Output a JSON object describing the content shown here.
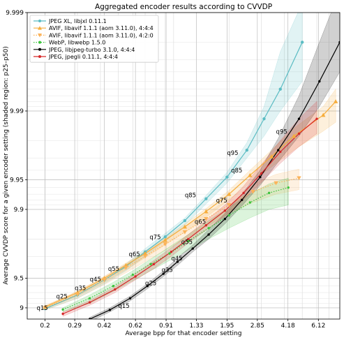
{
  "chart_data": {
    "type": "line",
    "title": "Aggregated encoder results according to CVVDP",
    "xlabel": "Average bpp for that encoder setting",
    "ylabel": "Average CVVDP score for a given encoder setting (shaded region: p25–p50)",
    "x_scale": "log",
    "y_scale": "log-distance-to-10",
    "xlim": [
      0.16,
      8.0
    ],
    "ylim": [
      8.7,
      9.999
    ],
    "x_ticks": [
      "0.2",
      "0.29",
      "0.42",
      "0.62",
      "0.91",
      "1.33",
      "1.95",
      "2.85",
      "4.18",
      "6.12"
    ],
    "y_ticks": [
      "9",
      "9.5",
      "9.9",
      "9.95",
      "9.99",
      "9.999"
    ],
    "grid": true,
    "legend_position": "upper-left",
    "series": [
      {
        "name": "JPEG XL, libjxl 0.11.1",
        "color": "#5bbcc3",
        "marker": "circle",
        "linestyle": "solid",
        "points": [
          [
            0.2,
            8.98
          ],
          [
            0.3,
            9.26
          ],
          [
            0.42,
            9.48
          ],
          [
            0.55,
            9.62
          ],
          [
            0.7,
            9.73
          ],
          [
            0.9,
            9.81
          ],
          [
            1.15,
            9.87
          ],
          [
            1.5,
            9.922
          ],
          [
            1.95,
            9.953
          ],
          [
            2.5,
            9.975
          ],
          [
            3.1,
            9.988
          ],
          [
            3.8,
            9.994
          ],
          [
            5.0,
            9.998
          ]
        ],
        "band_low": [
          8.95,
          9.2,
          9.43,
          9.58,
          9.7,
          9.79,
          9.855,
          9.912,
          9.946,
          9.97,
          9.982,
          9.99,
          9.995
        ],
        "band_high": [
          8.99,
          9.28,
          9.5,
          9.64,
          9.75,
          9.825,
          9.878,
          9.928,
          9.958,
          9.979,
          9.991,
          9.9975,
          9.9992
        ]
      },
      {
        "name": "AVIF, libavif 1.1.1 (aom 3.11.0), 4:4:4",
        "color": "#f6ad3c",
        "marker": "triangle-up",
        "linestyle": "solid",
        "points": [
          [
            0.2,
            9.02
          ],
          [
            0.3,
            9.3
          ],
          [
            0.42,
            9.5
          ],
          [
            0.55,
            9.63
          ],
          [
            0.7,
            9.72
          ],
          [
            0.9,
            9.795
          ],
          [
            1.15,
            9.85
          ],
          [
            1.5,
            9.895
          ],
          [
            2.0,
            9.93
          ],
          [
            2.6,
            9.955
          ],
          [
            3.4,
            9.971
          ],
          [
            4.5,
            9.982
          ],
          [
            6.5,
            9.989
          ],
          [
            7.6,
            9.992
          ]
        ],
        "band_low": [
          8.98,
          9.24,
          9.45,
          9.59,
          9.69,
          9.77,
          9.83,
          9.88,
          9.92,
          9.946,
          9.963,
          9.975,
          9.984,
          9.987
        ],
        "band_high": [
          9.04,
          9.32,
          9.52,
          9.65,
          9.735,
          9.805,
          9.86,
          9.902,
          9.936,
          9.96,
          9.975,
          9.985,
          9.991,
          9.994
        ]
      },
      {
        "name": "AVIF, libavif 1.1.1 (aom 3.11.0), 4:2:0",
        "color": "#fbb35a",
        "marker": "triangle-down",
        "linestyle": "dotted",
        "points": [
          [
            0.2,
            9.0
          ],
          [
            0.3,
            9.27
          ],
          [
            0.42,
            9.48
          ],
          [
            0.55,
            9.61
          ],
          [
            0.7,
            9.7
          ],
          [
            0.9,
            9.775
          ],
          [
            1.15,
            9.83
          ],
          [
            1.5,
            9.875
          ],
          [
            2.0,
            9.91
          ],
          [
            2.7,
            9.934
          ],
          [
            3.6,
            9.946
          ],
          [
            4.8,
            9.952
          ]
        ],
        "band_low": [
          8.95,
          9.2,
          9.42,
          9.56,
          9.66,
          9.74,
          9.8,
          9.85,
          9.89,
          9.915,
          9.93,
          9.937
        ],
        "band_high": [
          9.05,
          9.32,
          9.52,
          9.64,
          9.73,
          9.8,
          9.85,
          9.89,
          9.922,
          9.945,
          9.956,
          9.961
        ]
      },
      {
        "name": "WebP, libwebp 1.5.0",
        "color": "#3cc43c",
        "marker": "dot",
        "linestyle": "dotted",
        "points": [
          [
            0.25,
            8.96
          ],
          [
            0.35,
            9.2
          ],
          [
            0.47,
            9.4
          ],
          [
            0.6,
            9.54
          ],
          [
            0.75,
            9.64
          ],
          [
            0.95,
            9.72
          ],
          [
            1.2,
            9.79
          ],
          [
            1.55,
            9.845
          ],
          [
            2.0,
            9.885
          ],
          [
            2.6,
            9.915
          ],
          [
            3.3,
            9.932
          ],
          [
            4.2,
            9.94
          ]
        ],
        "band_low": [
          8.9,
          9.1,
          9.32,
          9.47,
          9.58,
          9.67,
          9.74,
          9.8,
          9.845,
          9.878,
          9.9,
          9.91
        ],
        "band_high": [
          9.0,
          9.26,
          9.45,
          9.58,
          9.68,
          9.76,
          9.82,
          9.87,
          9.905,
          9.93,
          9.945,
          9.952
        ]
      },
      {
        "name": "JPEG, libjpeg-turbo 3.1.0, 4:4:4",
        "color": "#000000",
        "marker": "dot",
        "linestyle": "solid",
        "points": [
          [
            0.35,
            8.7
          ],
          [
            0.45,
            8.95
          ],
          [
            0.58,
            9.2
          ],
          [
            0.72,
            9.4
          ],
          [
            0.88,
            9.55
          ],
          [
            1.05,
            9.66
          ],
          [
            1.27,
            9.75
          ],
          [
            1.55,
            9.82
          ],
          [
            1.9,
            9.875
          ],
          [
            2.35,
            9.92
          ],
          [
            2.95,
            9.953
          ],
          [
            3.7,
            9.975
          ],
          [
            4.8,
            9.988
          ],
          [
            6.2,
            9.995
          ],
          [
            8.0,
            9.998
          ]
        ],
        "band_low": [
          8.62,
          8.9,
          9.15,
          9.36,
          9.52,
          9.63,
          9.73,
          9.8,
          9.86,
          9.908,
          9.943,
          9.967,
          9.982,
          9.991,
          9.996
        ],
        "band_high": [
          8.75,
          9.0,
          9.24,
          9.43,
          9.58,
          9.69,
          9.77,
          9.84,
          9.89,
          9.93,
          9.96,
          9.981,
          9.993,
          9.998,
          9.9994
        ]
      },
      {
        "name": "JPEG, jpegli 0.11.1, 4:4:4",
        "color": "#d62728",
        "marker": "dot",
        "linestyle": "solid",
        "points": [
          [
            0.25,
            8.85
          ],
          [
            0.35,
            9.12
          ],
          [
            0.48,
            9.35
          ],
          [
            0.62,
            9.52
          ],
          [
            0.78,
            9.64
          ],
          [
            0.97,
            9.73
          ],
          [
            1.2,
            9.8
          ],
          [
            1.5,
            9.855
          ],
          [
            1.9,
            9.897
          ],
          [
            2.4,
            9.932
          ],
          [
            3.0,
            9.957
          ],
          [
            3.8,
            9.974
          ],
          [
            4.8,
            9.983
          ],
          [
            6.0,
            9.988
          ]
        ],
        "band_low": [
          8.78,
          9.06,
          9.3,
          9.48,
          9.6,
          9.7,
          9.78,
          9.837,
          9.882,
          9.92,
          9.947,
          9.966,
          9.977,
          9.983
        ],
        "band_high": [
          8.9,
          9.16,
          9.39,
          9.55,
          9.67,
          9.755,
          9.82,
          9.87,
          9.91,
          9.942,
          9.965,
          9.98,
          9.988,
          9.992
        ]
      }
    ],
    "annotations": [
      {
        "text": "q15",
        "x": 0.18,
        "y": 8.95
      },
      {
        "text": "q25",
        "x": 0.23,
        "y": 9.2
      },
      {
        "text": "q35",
        "x": 0.29,
        "y": 9.34
      },
      {
        "text": "q45",
        "x": 0.35,
        "y": 9.46
      },
      {
        "text": "q55",
        "x": 0.44,
        "y": 9.58
      },
      {
        "text": "q65",
        "x": 0.57,
        "y": 9.7
      },
      {
        "text": "q75",
        "x": 0.74,
        "y": 9.8
      },
      {
        "text": "q85",
        "x": 1.15,
        "y": 9.925
      },
      {
        "text": "q95",
        "x": 1.95,
        "y": 9.972
      },
      {
        "text": "q15",
        "x": 0.5,
        "y": 9.0
      },
      {
        "text": "q25",
        "x": 0.7,
        "y": 9.41
      },
      {
        "text": "q35",
        "x": 0.86,
        "y": 9.57
      },
      {
        "text": "q45",
        "x": 0.97,
        "y": 9.67
      },
      {
        "text": "q55",
        "x": 1.1,
        "y": 9.775
      },
      {
        "text": "q65",
        "x": 1.3,
        "y": 9.86
      },
      {
        "text": "q75",
        "x": 1.7,
        "y": 9.915
      },
      {
        "text": "q85",
        "x": 2.05,
        "y": 9.958
      },
      {
        "text": "q95",
        "x": 3.6,
        "y": 9.983
      }
    ]
  }
}
